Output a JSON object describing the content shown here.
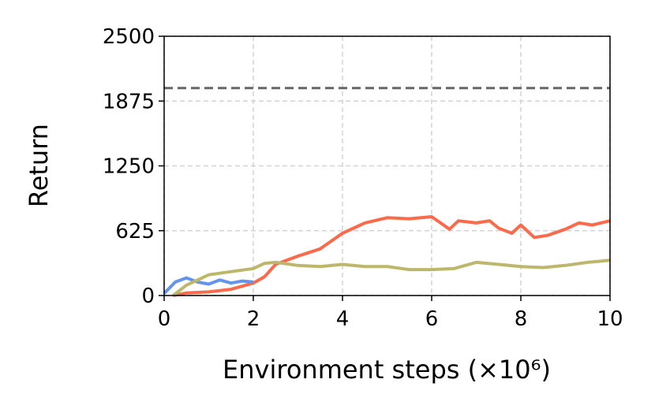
{
  "chart_data": {
    "type": "line",
    "xlabel": "Environment steps (×10⁶)",
    "ylabel": "Return",
    "xlim": [
      0,
      10
    ],
    "xticks": [
      0,
      2,
      4,
      6,
      8,
      10
    ],
    "ylim": [
      0,
      2500
    ],
    "yticks": [
      0,
      625,
      1250,
      1875,
      2500
    ],
    "grid": true,
    "reference_line": {
      "value": 2000,
      "color": "#666666"
    },
    "series": [
      {
        "color": "#fa6a4b",
        "x": [
          0.2,
          0.5,
          1.0,
          1.5,
          2.0,
          2.25,
          2.5,
          3.0,
          3.5,
          4.0,
          4.5,
          5.0,
          5.5,
          6.0,
          6.2,
          6.4,
          6.6,
          7.0,
          7.3,
          7.5,
          7.8,
          8.0,
          8.3,
          8.6,
          9.0,
          9.3,
          9.6,
          10.0
        ],
        "values": [
          0,
          25,
          35,
          60,
          120,
          180,
          300,
          380,
          450,
          600,
          700,
          750,
          740,
          760,
          700,
          640,
          720,
          700,
          720,
          650,
          600,
          680,
          560,
          580,
          640,
          700,
          680,
          720
        ]
      },
      {
        "color": "#6495ed",
        "x": [
          0,
          0.25,
          0.5,
          0.75,
          1.0,
          1.25,
          1.5,
          1.75,
          2.0
        ],
        "values": [
          20,
          130,
          170,
          130,
          110,
          150,
          120,
          140,
          130
        ]
      },
      {
        "color": "#bdb76b",
        "x": [
          0.2,
          0.5,
          0.75,
          1.0,
          1.5,
          2.0,
          2.25,
          2.5,
          3.0,
          3.5,
          4.0,
          4.5,
          5.0,
          5.5,
          6.0,
          6.5,
          7.0,
          7.5,
          8.0,
          8.5,
          9.0,
          9.5,
          10.0
        ],
        "values": [
          0,
          100,
          150,
          200,
          230,
          260,
          310,
          320,
          290,
          280,
          300,
          280,
          280,
          250,
          250,
          260,
          320,
          300,
          280,
          270,
          290,
          320,
          340
        ]
      }
    ]
  }
}
